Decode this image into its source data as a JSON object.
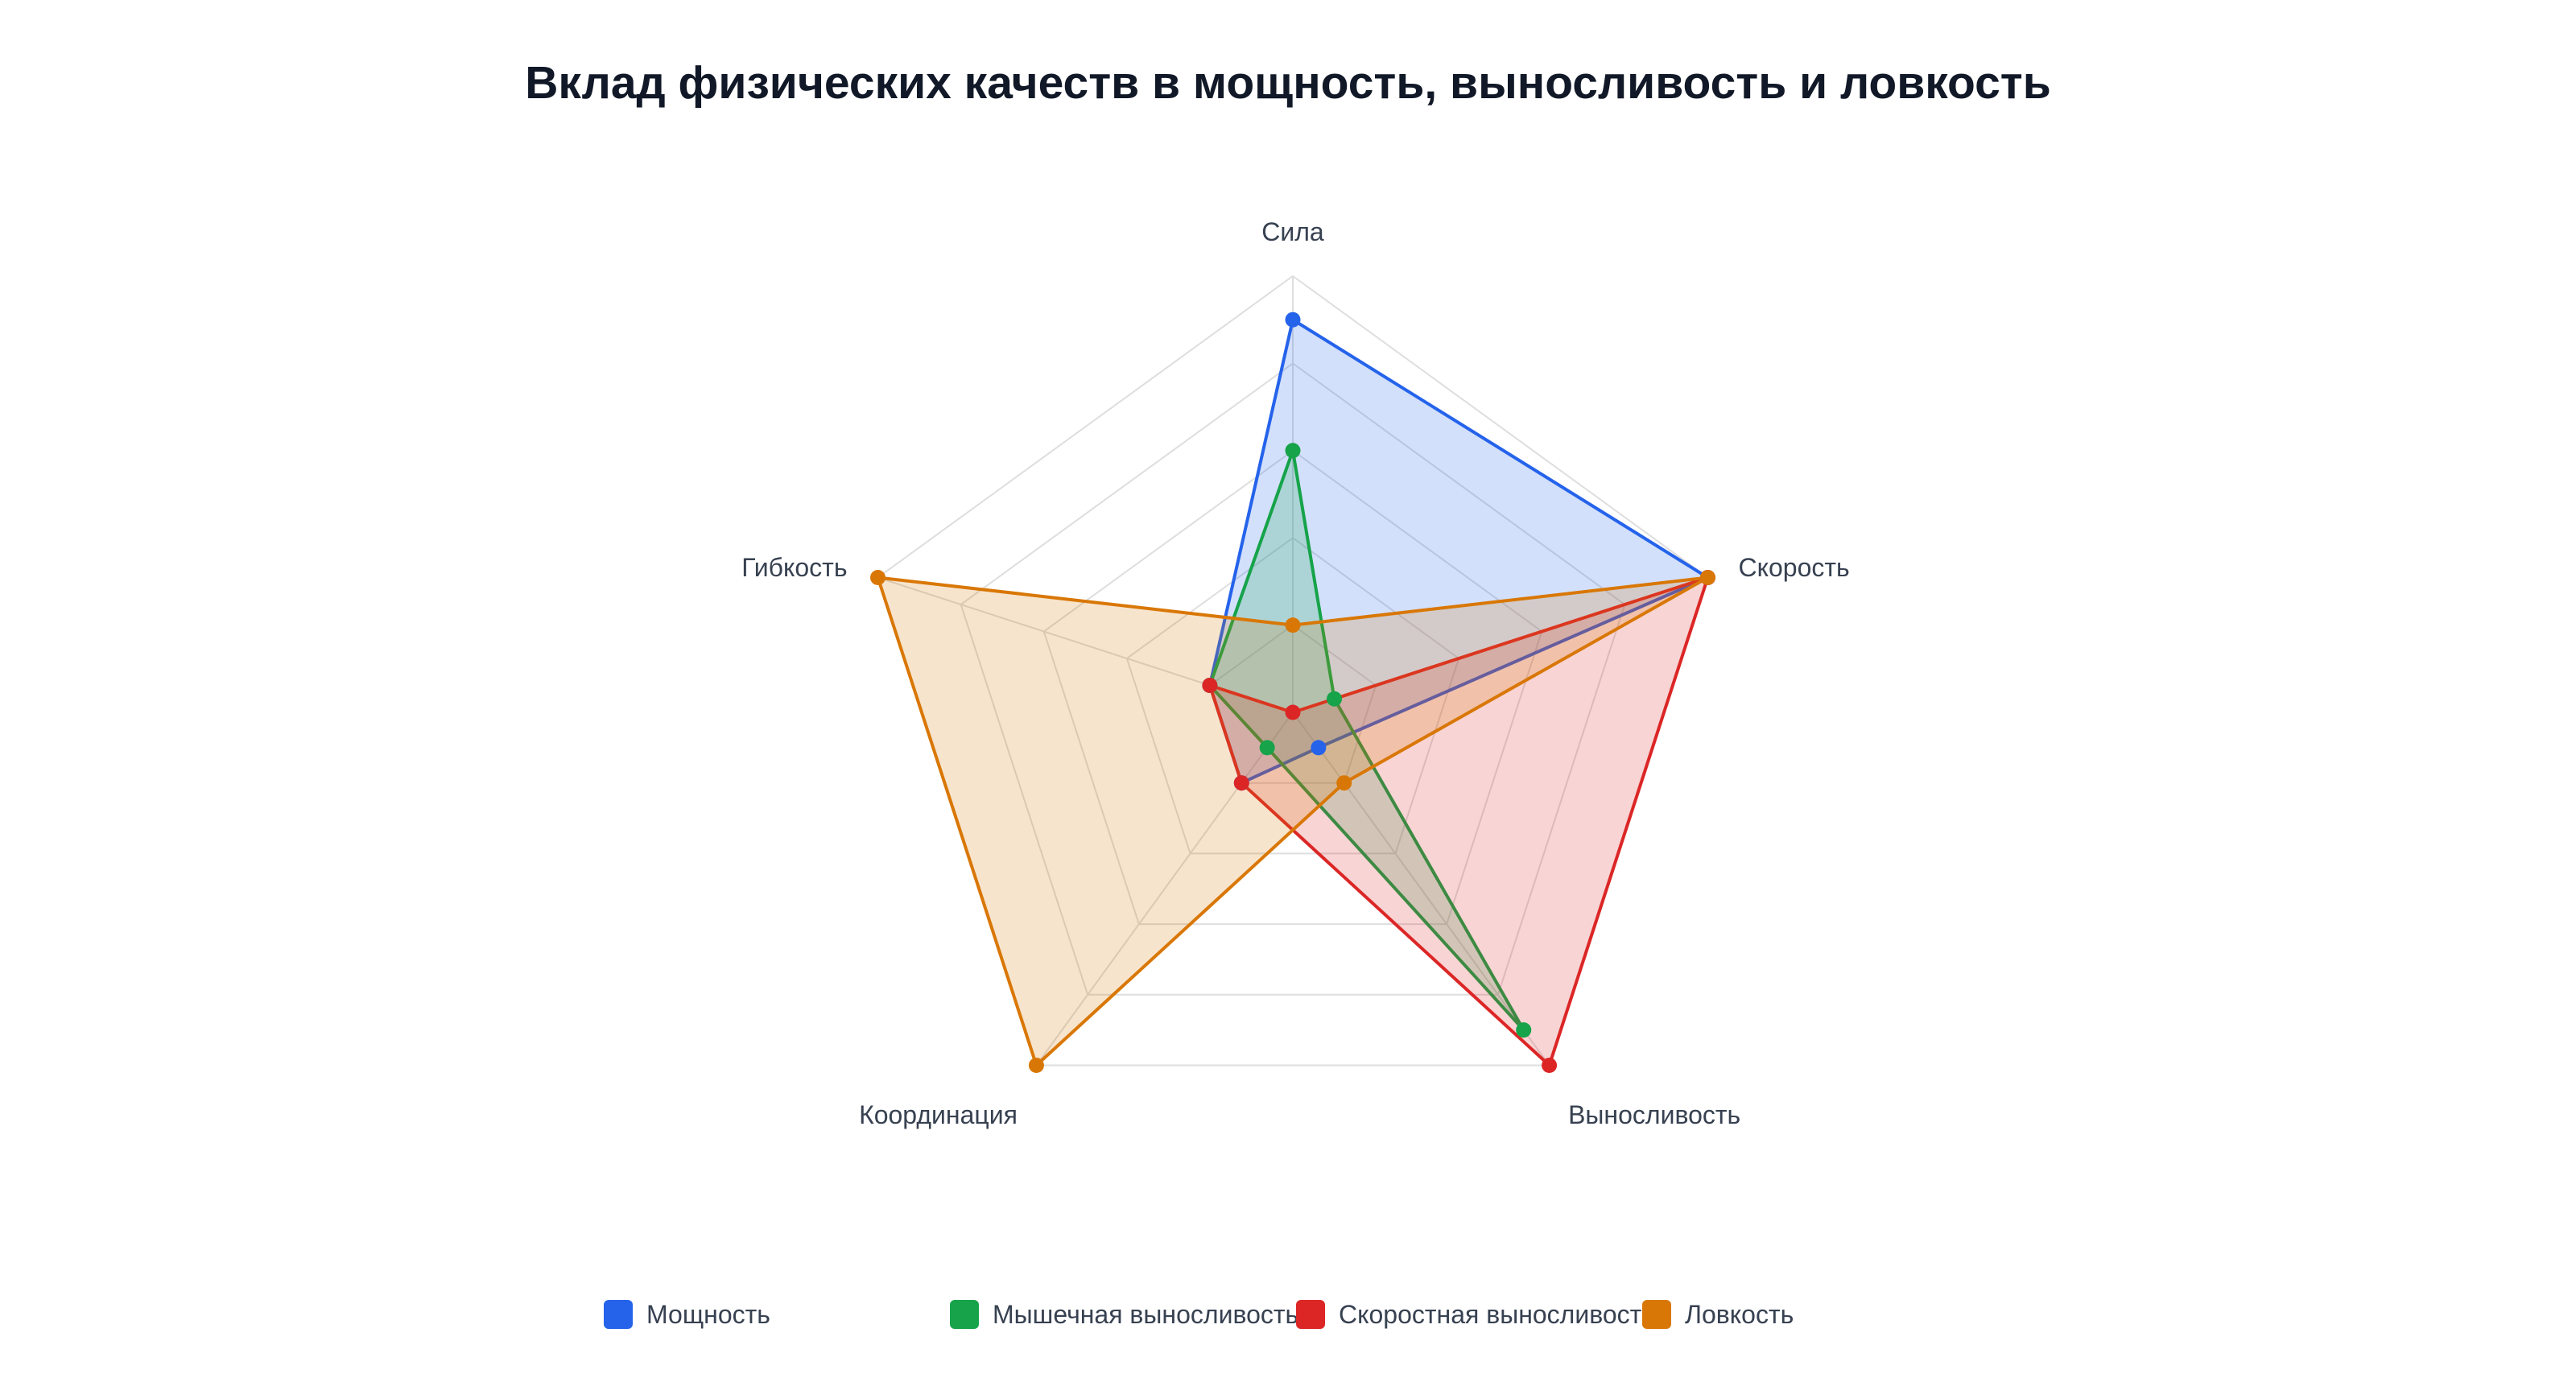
{
  "chart_data": {
    "type": "radar",
    "title": "Вклад физических качеств в мощность, выносливость и ловкость",
    "axes": [
      "Сила",
      "Скорость",
      "Выносливость",
      "Координация",
      "Гибкость"
    ],
    "rlim": [
      0,
      10
    ],
    "grid": true,
    "legend_position": "bottom",
    "series": [
      {
        "name": "Мощность",
        "color": "#2563eb",
        "fill": "rgba(37,99,235,0.2)",
        "values": [
          9,
          10,
          1,
          2,
          2
        ]
      },
      {
        "name": "Мышечная выносливость",
        "color": "#16a34a",
        "fill": "rgba(22,163,74,0.2)",
        "values": [
          6,
          1,
          9,
          1,
          2
        ]
      },
      {
        "name": "Скоростная выносливость",
        "color": "#dc2626",
        "fill": "rgba(220,38,38,0.2)",
        "values": [
          0,
          10,
          10,
          2,
          2
        ]
      },
      {
        "name": "Ловкость",
        "color": "#d97706",
        "fill": "rgba(217,119,6,0.2)",
        "values": [
          2,
          10,
          2,
          10,
          10
        ]
      }
    ]
  }
}
